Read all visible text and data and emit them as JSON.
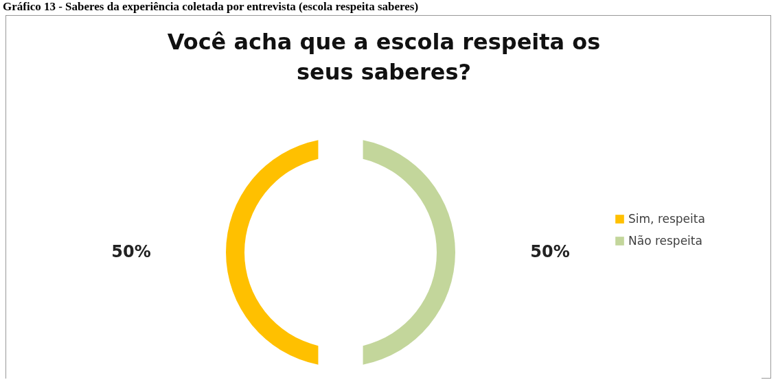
{
  "chart_data": {
    "type": "donut",
    "title": "Você acha que a escola respeita os seus saberes?",
    "annotations": [
      "Gráfico 13 - Saberes da experiência coletada por entrevista (escola respeita saberes)"
    ],
    "categories": [
      "Sim, respeita",
      "Não respeita"
    ],
    "values": [
      50,
      50
    ],
    "colors": [
      "#ffc000",
      "#c3d69b"
    ],
    "value_labels": [
      "50%",
      "50%"
    ],
    "legend": "right"
  }
}
